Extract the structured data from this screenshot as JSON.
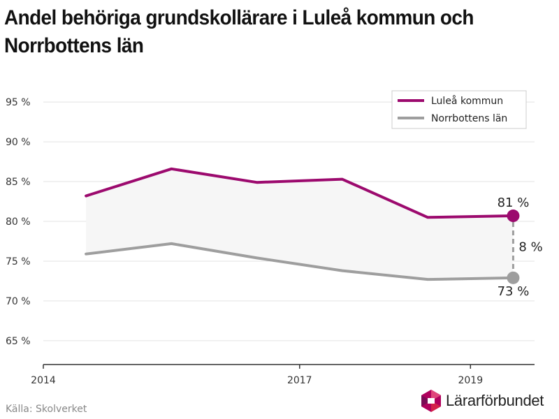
{
  "title": "Andel behöriga grundskollärare i Luleå kommun och Norrbottens län",
  "source": "Källa: Skolverket",
  "logo_text": "Lärarförbundet",
  "chart_data": {
    "type": "line",
    "x": [
      2014.5,
      2015.5,
      2016.5,
      2017.5,
      2018.5,
      2019.5
    ],
    "xticks": [
      2014,
      2017,
      2019
    ],
    "xtick_labels": [
      "2014",
      "2017",
      "2019"
    ],
    "xlim": [
      2014,
      2019.75
    ],
    "ylim": [
      62,
      98
    ],
    "yticks": [
      65,
      70,
      75,
      80,
      85,
      90,
      95
    ],
    "ytick_labels": [
      "65 %",
      "70 %",
      "75 %",
      "80 %",
      "85 %",
      "90 %",
      "95 %"
    ],
    "grid": true,
    "legend_position": "top-right",
    "series": [
      {
        "name": "Luleå kommun",
        "color": "#9c0a6e",
        "values": [
          83.2,
          86.6,
          84.9,
          85.3,
          80.5,
          80.7
        ]
      },
      {
        "name": "Norrbottens län",
        "color": "#9e9e9e",
        "values": [
          75.9,
          77.2,
          75.4,
          73.8,
          72.7,
          72.9
        ]
      }
    ],
    "annotations": {
      "top_label": "81 %",
      "bottom_label": "73 %",
      "gap_label": "8 %"
    },
    "fill_color": "#f6f6f6"
  }
}
